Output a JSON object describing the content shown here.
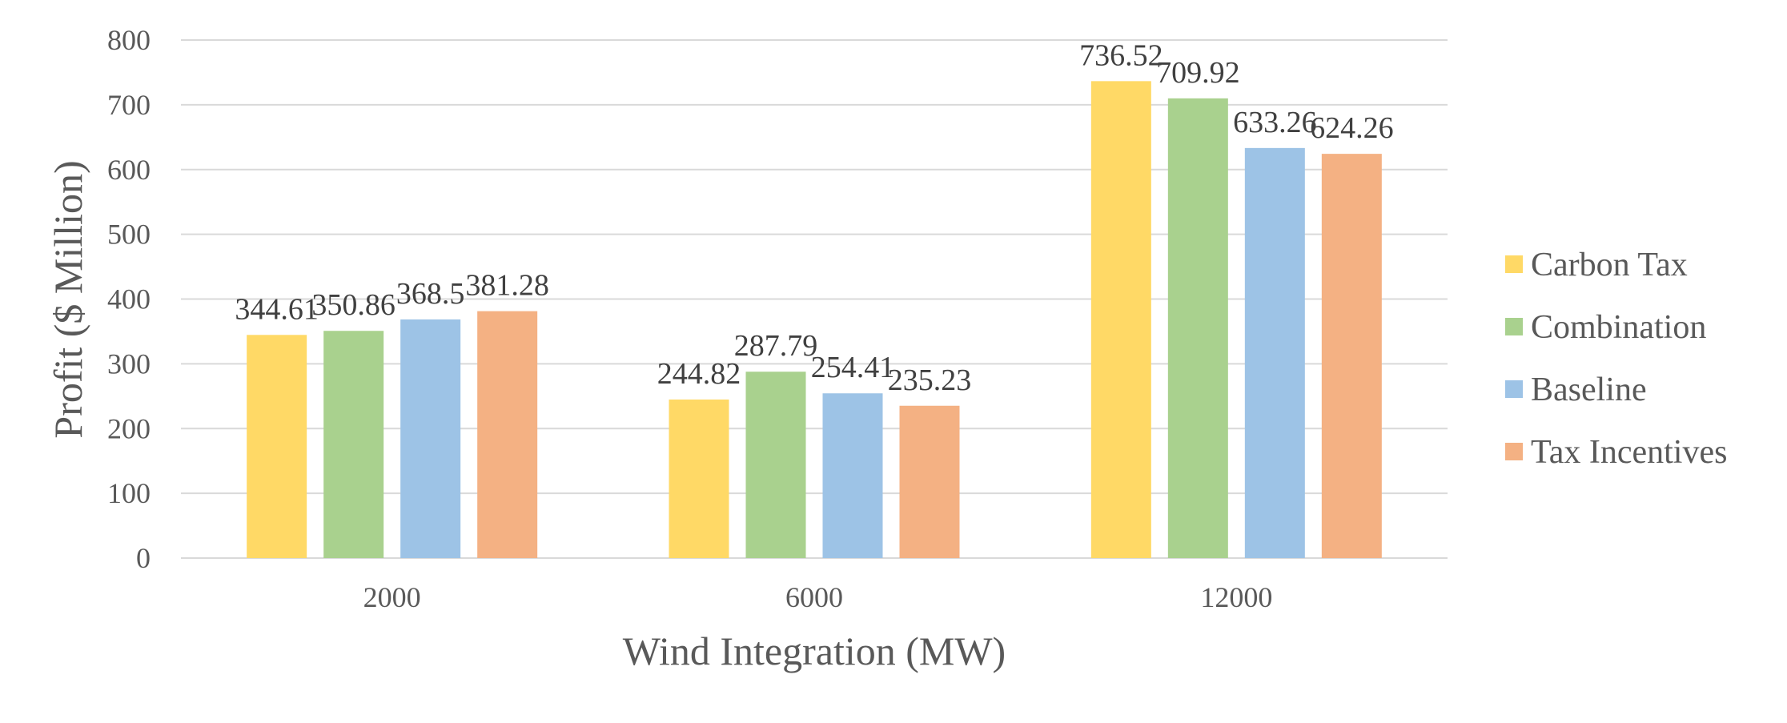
{
  "chart_data": {
    "type": "bar",
    "title": "",
    "xlabel": "Wind Integration (MW)",
    "ylabel": "Profit ($ Million)",
    "categories": [
      "2000",
      "6000",
      "12000"
    ],
    "ylim": [
      0,
      800
    ],
    "yticks": [
      0,
      100,
      200,
      300,
      400,
      500,
      600,
      700,
      800
    ],
    "grid": true,
    "legend_position": "right",
    "series": [
      {
        "name": "Carbon Tax",
        "color": "#FFD966",
        "values": [
          344.61,
          244.82,
          736.52
        ],
        "labels": [
          "344.61",
          "244.82",
          "736.52"
        ]
      },
      {
        "name": "Combination",
        "color": "#A9D18E",
        "values": [
          350.86,
          287.79,
          709.92
        ],
        "labels": [
          "350.86",
          "287.79",
          "709.92"
        ]
      },
      {
        "name": "Baseline",
        "color": "#9DC3E6",
        "values": [
          368.5,
          254.41,
          633.26
        ],
        "labels": [
          "368.5",
          "254.41",
          "633.26"
        ]
      },
      {
        "name": "Tax Incentives",
        "color": "#F4B183",
        "values": [
          381.28,
          235.23,
          624.26
        ],
        "labels": [
          "381.28",
          "235.23",
          "624.26"
        ]
      }
    ]
  }
}
